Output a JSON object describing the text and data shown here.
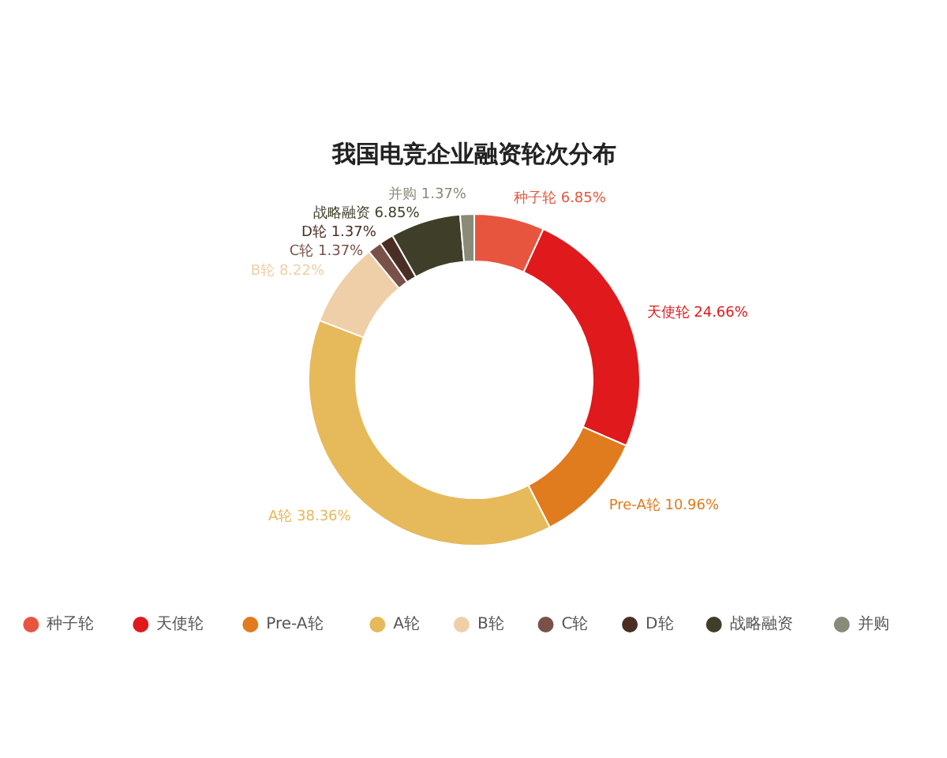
{
  "chart_data": {
    "type": "donut",
    "title": "我国电竞企业融资轮次分布",
    "categories": [
      "种子轮",
      "天使轮",
      "Pre-A轮",
      "A轮",
      "B轮",
      "C轮",
      "D轮",
      "战略融资",
      "并购"
    ],
    "values": [
      6.85,
      24.66,
      10.96,
      38.36,
      8.22,
      1.37,
      1.37,
      6.85,
      1.37
    ],
    "colors": [
      "#e8553f",
      "#e0191c",
      "#e07b1e",
      "#e6b95a",
      "#efcfa8",
      "#7a5148",
      "#4a2e24",
      "#3f3e28",
      "#8a8a78"
    ],
    "value_labels": [
      "6.85%",
      "24.66%",
      "10.96%",
      "38.36%",
      "8.22%",
      "1.37%",
      "1.37%",
      "6.85%",
      "1.37%"
    ],
    "legend": "bottom"
  }
}
